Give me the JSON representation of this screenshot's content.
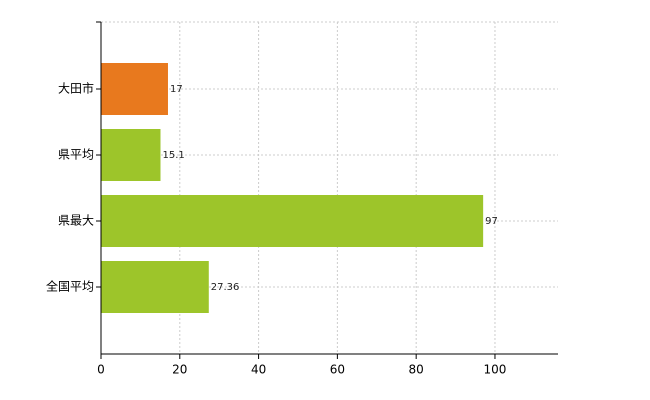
{
  "chart_data": {
    "type": "hbar",
    "categories": [
      "大田市",
      "県平均",
      "県最大",
      "全国平均"
    ],
    "values": [
      17,
      15.1,
      97,
      27.36
    ],
    "colors": [
      "#e8791e",
      "#9dc52a",
      "#9dc52a",
      "#9dc52a"
    ],
    "xlim": [
      0,
      116
    ],
    "xticks": [
      0,
      20,
      40,
      60,
      80,
      100
    ],
    "grid": true
  }
}
